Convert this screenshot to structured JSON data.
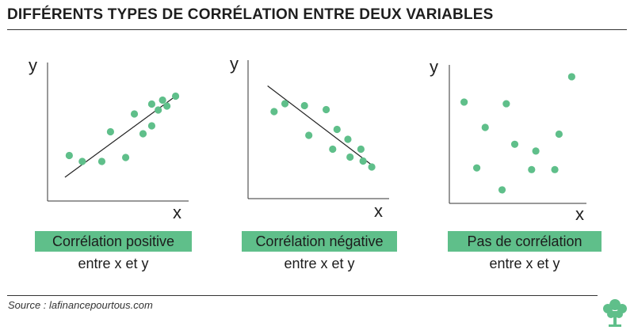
{
  "title": "DIFFÉRENTS TYPES DE CORRÉLATION ENTRE DEUX VARIABLES",
  "source": "Source : lafinancepourtous.com",
  "colors": {
    "point": "#5fbf8a",
    "axis": "#333333",
    "label_bg": "#5fbf8a"
  },
  "chart_data": [
    {
      "type": "scatter",
      "title": "Corrélation positive",
      "subtitle": "entre x et y",
      "xlabel": "x",
      "ylabel": "y",
      "points": [
        [
          1.0,
          2.3
        ],
        [
          1.6,
          2.0
        ],
        [
          2.5,
          2.0
        ],
        [
          2.9,
          3.5
        ],
        [
          3.6,
          2.2
        ],
        [
          4.0,
          4.4
        ],
        [
          4.4,
          3.4
        ],
        [
          4.8,
          3.8
        ],
        [
          4.8,
          4.9
        ],
        [
          5.1,
          4.6
        ],
        [
          5.3,
          5.1
        ],
        [
          5.5,
          4.8
        ],
        [
          5.9,
          5.3
        ]
      ],
      "trendline": [
        [
          0.8,
          1.2
        ],
        [
          5.9,
          5.3
        ]
      ],
      "xlim": [
        0,
        6.5
      ],
      "ylim": [
        0,
        7
      ]
    },
    {
      "type": "scatter",
      "title": "Corrélation négative",
      "subtitle": "entre x et y",
      "xlabel": "x",
      "ylabel": "y",
      "points": [
        [
          1.2,
          4.4
        ],
        [
          1.7,
          4.8
        ],
        [
          2.6,
          4.7
        ],
        [
          2.8,
          3.2
        ],
        [
          3.6,
          4.5
        ],
        [
          3.9,
          2.5
        ],
        [
          4.1,
          3.5
        ],
        [
          4.6,
          3.0
        ],
        [
          4.7,
          2.1
        ],
        [
          5.2,
          2.5
        ],
        [
          5.3,
          1.9
        ],
        [
          5.7,
          1.6
        ]
      ],
      "trendline": [
        [
          0.9,
          5.7
        ],
        [
          5.7,
          1.7
        ]
      ],
      "xlim": [
        0,
        6.5
      ],
      "ylim": [
        0,
        7
      ]
    },
    {
      "type": "scatter",
      "title": "Pas de corrélation",
      "subtitle": "entre x et y",
      "xlabel": "x",
      "ylabel": "y",
      "points": [
        [
          0.7,
          6.0
        ],
        [
          1.3,
          2.1
        ],
        [
          1.7,
          4.5
        ],
        [
          2.5,
          0.8
        ],
        [
          2.7,
          5.9
        ],
        [
          3.1,
          3.5
        ],
        [
          3.9,
          2.0
        ],
        [
          4.1,
          3.1
        ],
        [
          5.0,
          2.0
        ],
        [
          5.2,
          4.1
        ],
        [
          5.8,
          7.5
        ]
      ],
      "trendline": null,
      "xlim": [
        0,
        6.5
      ],
      "ylim": [
        0,
        8.2
      ]
    }
  ]
}
